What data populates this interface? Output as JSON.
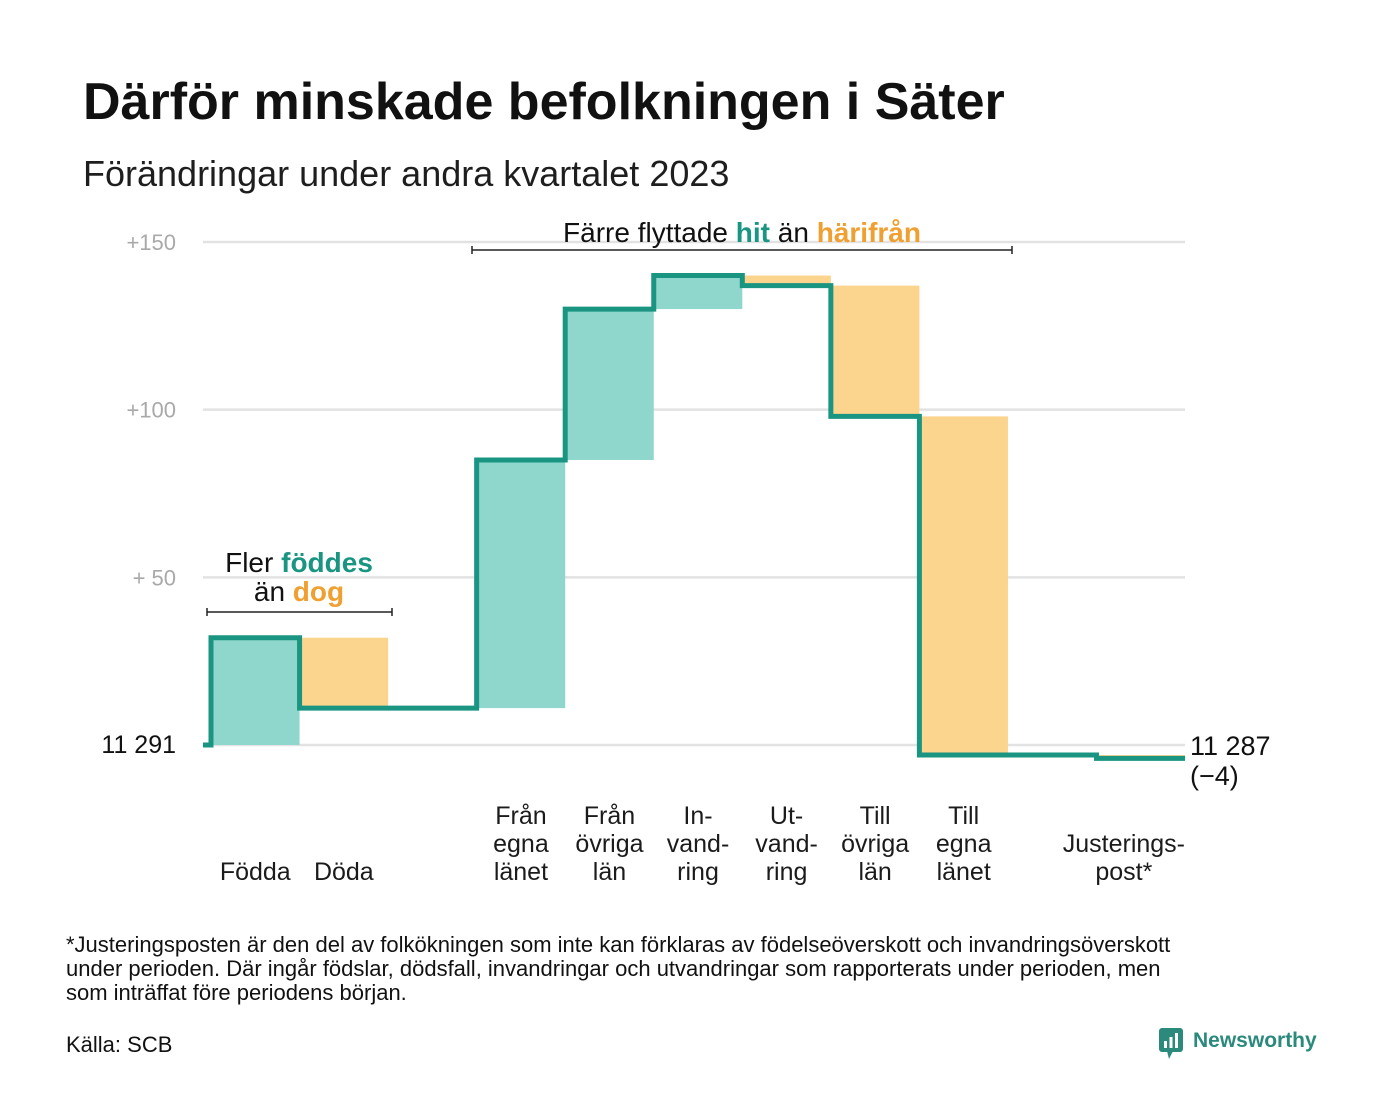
{
  "chart_data": {
    "type": "bar",
    "waterfall": true,
    "title": "Därför minskade befolkningen i Säter",
    "subtitle": "Förändringar under andra kvartalet 2023",
    "start_value": 11291,
    "end_value": 11287,
    "categories": [
      [
        "Födda"
      ],
      [
        "Döda"
      ],
      [
        "Från",
        "egna",
        "länet"
      ],
      [
        "Från",
        "övriga",
        "län"
      ],
      [
        "In-",
        "vand-",
        "ring"
      ],
      [
        "Ut-",
        "vand-",
        "ring"
      ],
      [
        "Till",
        "övriga",
        "län"
      ],
      [
        "Till",
        "egna",
        "länet"
      ],
      [
        "Justerings-",
        "post*"
      ]
    ],
    "values": [
      32,
      -21,
      74,
      45,
      10,
      -3,
      -39,
      -101,
      -1
    ],
    "y_axis": {
      "baseline_value": 11291,
      "baseline_label": "11 291",
      "ticks": [
        50,
        100,
        150
      ],
      "tick_labels": [
        "+ 50",
        "+100",
        "+150"
      ],
      "ylim": [
        0,
        150
      ]
    },
    "end_label": "11 287",
    "end_change_label": "(−4)",
    "annotations": {
      "births_deaths": {
        "line1": [
          "Fler",
          "föddes"
        ],
        "line2": [
          "än",
          "dog"
        ]
      },
      "migration": [
        "Färre flyttade",
        "hit",
        "än",
        "härifrån"
      ]
    },
    "grid": true,
    "colors": {
      "increase": "#8fd6cc",
      "decrease": "#fbd48d",
      "line": "#1a9582",
      "grid": "#e2e2e2",
      "text_increase": "#1a9582",
      "text_decrease": "#f0a030"
    }
  },
  "footnote": [
    "*Justeringsposten är den del av folkökningen som inte kan förklaras av födelseöverskott och invandringsöverskott",
    "under perioden. Där ingår födslar, dödsfall, invandringar och utvandringar som rapporterats under perioden, men",
    "som inträffat före periodens början."
  ],
  "source": "Källa: SCB",
  "brand": {
    "name": "Newsworthy",
    "icon": "newsworthy-logo-icon",
    "color": "#2b8a7c"
  }
}
